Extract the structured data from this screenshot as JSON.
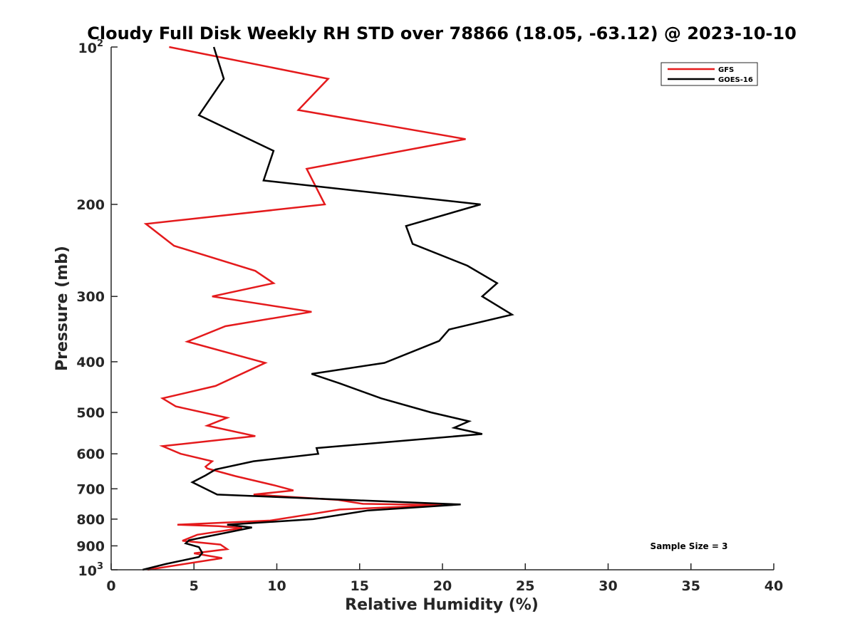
{
  "chart_data": {
    "type": "line",
    "title": "Cloudy Full Disk Weekly RH STD over 78866 (18.05, -63.12) @ 2023-10-10",
    "xlabel": "Relative Humidity (%)",
    "ylabel": "Pressure (mb)",
    "xlim": [
      0,
      40
    ],
    "ylim": [
      100,
      1000
    ],
    "yscale": "log",
    "yreversed": true,
    "grid": false,
    "legend_position": "top-right",
    "x_ticks": [
      "0",
      "5",
      "10",
      "15",
      "20",
      "25",
      "30",
      "35",
      "40"
    ],
    "y_ticks": [
      {
        "base": "10",
        "exp": "2",
        "value": 100
      },
      {
        "label": "200",
        "value": 200
      },
      {
        "label": "300",
        "value": 300
      },
      {
        "label": "400",
        "value": 400
      },
      {
        "label": "500",
        "value": 500
      },
      {
        "label": "600",
        "value": 600
      },
      {
        "label": "700",
        "value": 700
      },
      {
        "label": "800",
        "value": 800
      },
      {
        "label": "900",
        "value": 900
      },
      {
        "base": "10",
        "exp": "3",
        "value": 1000
      }
    ],
    "annotation": "Sample Size = 3",
    "series": [
      {
        "name": "GFS",
        "color": "#e41a1c",
        "points": [
          [
            3.5,
            100
          ],
          [
            13.1,
            115
          ],
          [
            11.3,
            132
          ],
          [
            21.4,
            150
          ],
          [
            11.8,
            171
          ],
          [
            12.9,
            200
          ],
          [
            2.1,
            218
          ],
          [
            3.8,
            240
          ],
          [
            8.7,
            268
          ],
          [
            9.8,
            283
          ],
          [
            6.1,
            300
          ],
          [
            12.1,
            321
          ],
          [
            6.9,
            342
          ],
          [
            4.6,
            366
          ],
          [
            9.3,
            402
          ],
          [
            6.3,
            445
          ],
          [
            3.1,
            470
          ],
          [
            3.9,
            487
          ],
          [
            7.0,
            512
          ],
          [
            5.8,
            530
          ],
          [
            8.7,
            555
          ],
          [
            3.1,
            580
          ],
          [
            4.2,
            600
          ],
          [
            6.1,
            620
          ],
          [
            5.7,
            635
          ],
          [
            5.8,
            640
          ],
          [
            7.5,
            662
          ],
          [
            9.9,
            690
          ],
          [
            11.0,
            705
          ],
          [
            8.6,
            718
          ],
          [
            13.7,
            735
          ],
          [
            15.2,
            748
          ],
          [
            20.0,
            752
          ],
          [
            13.8,
            767
          ],
          [
            11.8,
            785
          ],
          [
            9.6,
            805
          ],
          [
            4.0,
            820
          ],
          [
            6.5,
            825
          ],
          [
            7.9,
            832
          ],
          [
            5.2,
            857
          ],
          [
            4.3,
            880
          ],
          [
            6.6,
            895
          ],
          [
            7.0,
            913
          ],
          [
            5.0,
            930
          ],
          [
            6.7,
            950
          ],
          [
            2.2,
            1000
          ]
        ]
      },
      {
        "name": "GOES-16",
        "color": "#000000",
        "points": [
          [
            6.2,
            100
          ],
          [
            6.8,
            115
          ],
          [
            5.3,
            135
          ],
          [
            9.8,
            158
          ],
          [
            9.2,
            180
          ],
          [
            22.3,
            200
          ],
          [
            17.8,
            220
          ],
          [
            18.2,
            238
          ],
          [
            21.5,
            262
          ],
          [
            23.3,
            283
          ],
          [
            22.4,
            300
          ],
          [
            24.2,
            325
          ],
          [
            20.4,
            347
          ],
          [
            19.8,
            365
          ],
          [
            16.5,
            402
          ],
          [
            12.1,
            422
          ],
          [
            13.8,
            440
          ],
          [
            16.3,
            470
          ],
          [
            19.3,
            500
          ],
          [
            21.6,
            520
          ],
          [
            20.7,
            535
          ],
          [
            22.4,
            550
          ],
          [
            12.4,
            585
          ],
          [
            12.5,
            600
          ],
          [
            8.6,
            620
          ],
          [
            6.3,
            643
          ],
          [
            5.7,
            660
          ],
          [
            4.9,
            680
          ],
          [
            6.4,
            718
          ],
          [
            21.1,
            750
          ],
          [
            15.5,
            770
          ],
          [
            12.2,
            800
          ],
          [
            8.3,
            815
          ],
          [
            7.0,
            820
          ],
          [
            8.5,
            830
          ],
          [
            4.7,
            878
          ],
          [
            4.5,
            890
          ],
          [
            5.3,
            905
          ],
          [
            5.5,
            928
          ],
          [
            5.3,
            945
          ],
          [
            3.3,
            975
          ],
          [
            1.9,
            1000
          ]
        ]
      }
    ]
  }
}
